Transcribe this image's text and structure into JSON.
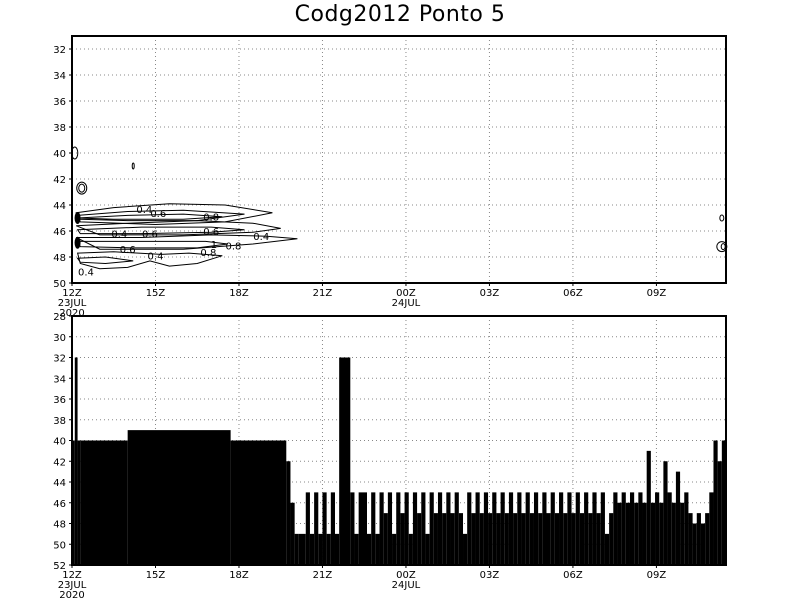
{
  "title": "Codg2012 Ponto 5",
  "chart_data": [
    {
      "type": "contour",
      "x_unit": "hours since 12Z 23JUL2020",
      "xlim": [
        0,
        23.5
      ],
      "x_ticks": [
        {
          "x": 0,
          "label": "12Z",
          "sub": "23JUL",
          "sub2": "2020"
        },
        {
          "x": 3,
          "label": "15Z"
        },
        {
          "x": 6,
          "label": "18Z"
        },
        {
          "x": 9,
          "label": "21Z"
        },
        {
          "x": 12,
          "label": "00Z",
          "sub": "24JUL"
        },
        {
          "x": 15,
          "label": "03Z"
        },
        {
          "x": 18,
          "label": "06Z"
        },
        {
          "x": 21,
          "label": "09Z"
        }
      ],
      "ylim": [
        31,
        50
      ],
      "y_inverted": true,
      "y_ticks": [
        32,
        34,
        36,
        38,
        40,
        42,
        44,
        46,
        48,
        50
      ],
      "grid": "dotted",
      "contour_labels": [
        {
          "text": "0.4",
          "x": 2.6,
          "y": 44.3
        },
        {
          "text": "0.6",
          "x": 3.1,
          "y": 44.6
        },
        {
          "text": "0.8",
          "x": 5.0,
          "y": 44.9
        },
        {
          "text": "0.6",
          "x": 5.0,
          "y": 46.0
        },
        {
          "text": "0.4",
          "x": 1.7,
          "y": 46.2
        },
        {
          "text": "0.6",
          "x": 2.8,
          "y": 46.2
        },
        {
          "text": "0.4",
          "x": 6.8,
          "y": 46.4
        },
        {
          "text": "1",
          "x": 5.1,
          "y": 47.0
        },
        {
          "text": "0.8",
          "x": 5.8,
          "y": 47.1
        },
        {
          "text": "0.6",
          "x": 2.0,
          "y": 47.4
        },
        {
          "text": "0.8",
          "x": 4.9,
          "y": 47.6
        },
        {
          "text": "0.4",
          "x": 3.0,
          "y": 47.9
        },
        {
          "text": "0.4",
          "x": 0.5,
          "y": 49.1
        }
      ]
    },
    {
      "type": "bar",
      "x_unit": "hours since 12Z 23JUL2020",
      "xlim": [
        0,
        23.5
      ],
      "x_ticks": [
        {
          "x": 0,
          "label": "12Z",
          "sub": "23JUL",
          "sub2": "2020"
        },
        {
          "x": 3,
          "label": "15Z"
        },
        {
          "x": 6,
          "label": "18Z"
        },
        {
          "x": 9,
          "label": "21Z"
        },
        {
          "x": 12,
          "label": "00Z",
          "sub": "24JUL"
        },
        {
          "x": 15,
          "label": "03Z"
        },
        {
          "x": 18,
          "label": "06Z"
        },
        {
          "x": 21,
          "label": "09Z"
        }
      ],
      "ylim": [
        28,
        52
      ],
      "y_inverted": true,
      "y_ticks": [
        28,
        30,
        32,
        34,
        36,
        38,
        40,
        42,
        44,
        46,
        48,
        50,
        52
      ],
      "baseline": 52,
      "grid": "dotted",
      "bars": [
        [
          0.0,
          0.1,
          40
        ],
        [
          0.1,
          0.2,
          32
        ],
        [
          0.2,
          0.3,
          40
        ],
        [
          0.3,
          2.0,
          40
        ],
        [
          2.0,
          5.7,
          39
        ],
        [
          5.7,
          7.7,
          40
        ],
        [
          7.7,
          7.85,
          42
        ],
        [
          7.85,
          8.0,
          46
        ],
        [
          8.0,
          8.15,
          49
        ],
        [
          8.15,
          8.4,
          49
        ],
        [
          8.4,
          8.55,
          45
        ],
        [
          8.55,
          8.7,
          49
        ],
        [
          8.7,
          8.85,
          45
        ],
        [
          8.85,
          9.0,
          49
        ],
        [
          9.0,
          9.15,
          45
        ],
        [
          9.15,
          9.3,
          49
        ],
        [
          9.3,
          9.45,
          45
        ],
        [
          9.45,
          9.6,
          49
        ],
        [
          9.6,
          10.0,
          32
        ],
        [
          10.0,
          10.15,
          45
        ],
        [
          10.15,
          10.3,
          49
        ],
        [
          10.3,
          10.6,
          45
        ],
        [
          10.6,
          10.75,
          49
        ],
        [
          10.75,
          10.9,
          45
        ],
        [
          10.9,
          11.05,
          49
        ],
        [
          11.05,
          11.2,
          45
        ],
        [
          11.2,
          11.35,
          47
        ],
        [
          11.35,
          11.5,
          45
        ],
        [
          11.5,
          11.65,
          49
        ],
        [
          11.65,
          11.8,
          45
        ],
        [
          11.8,
          11.95,
          47
        ],
        [
          11.95,
          12.1,
          45
        ],
        [
          12.1,
          12.25,
          49
        ],
        [
          12.25,
          12.4,
          45
        ],
        [
          12.4,
          12.55,
          47
        ],
        [
          12.55,
          12.7,
          45
        ],
        [
          12.7,
          12.85,
          49
        ],
        [
          12.85,
          13.0,
          45
        ],
        [
          13.0,
          13.15,
          47
        ],
        [
          13.15,
          13.3,
          45
        ],
        [
          13.3,
          13.45,
          47
        ],
        [
          13.45,
          13.6,
          45
        ],
        [
          13.6,
          13.75,
          47
        ],
        [
          13.75,
          13.9,
          45
        ],
        [
          13.9,
          14.05,
          47
        ],
        [
          14.05,
          14.2,
          49
        ],
        [
          14.2,
          14.35,
          45
        ],
        [
          14.35,
          14.5,
          47
        ],
        [
          14.5,
          14.65,
          45
        ],
        [
          14.65,
          14.8,
          47
        ],
        [
          14.8,
          14.95,
          45
        ],
        [
          14.95,
          15.1,
          47
        ],
        [
          15.1,
          15.25,
          45
        ],
        [
          15.25,
          15.4,
          47
        ],
        [
          15.4,
          15.55,
          45
        ],
        [
          15.55,
          15.7,
          47
        ],
        [
          15.7,
          15.85,
          45
        ],
        [
          15.85,
          16.0,
          47
        ],
        [
          16.0,
          16.15,
          45
        ],
        [
          16.15,
          16.3,
          47
        ],
        [
          16.3,
          16.45,
          45
        ],
        [
          16.45,
          16.6,
          47
        ],
        [
          16.6,
          16.75,
          45
        ],
        [
          16.75,
          16.9,
          47
        ],
        [
          16.9,
          17.05,
          45
        ],
        [
          17.05,
          17.2,
          47
        ],
        [
          17.2,
          17.35,
          45
        ],
        [
          17.35,
          17.5,
          47
        ],
        [
          17.5,
          17.65,
          45
        ],
        [
          17.65,
          17.8,
          47
        ],
        [
          17.8,
          17.95,
          45
        ],
        [
          17.95,
          18.1,
          47
        ],
        [
          18.1,
          18.25,
          45
        ],
        [
          18.25,
          18.4,
          47
        ],
        [
          18.4,
          18.55,
          45
        ],
        [
          18.55,
          18.7,
          47
        ],
        [
          18.7,
          18.85,
          45
        ],
        [
          18.85,
          19.0,
          47
        ],
        [
          19.0,
          19.15,
          45
        ],
        [
          19.15,
          19.3,
          49
        ],
        [
          19.3,
          19.45,
          47
        ],
        [
          19.45,
          19.6,
          45
        ],
        [
          19.6,
          19.75,
          46
        ],
        [
          19.75,
          19.9,
          45
        ],
        [
          19.9,
          20.05,
          46
        ],
        [
          20.05,
          20.2,
          45
        ],
        [
          20.2,
          20.35,
          46
        ],
        [
          20.35,
          20.5,
          45
        ],
        [
          20.5,
          20.65,
          46
        ],
        [
          20.65,
          20.8,
          41
        ],
        [
          20.8,
          20.95,
          46
        ],
        [
          20.95,
          21.1,
          45
        ],
        [
          21.1,
          21.25,
          46
        ],
        [
          21.25,
          21.4,
          42
        ],
        [
          21.4,
          21.55,
          45
        ],
        [
          21.55,
          21.7,
          46
        ],
        [
          21.7,
          21.85,
          43
        ],
        [
          21.85,
          22.0,
          46
        ],
        [
          22.0,
          22.15,
          45
        ],
        [
          22.15,
          22.3,
          47
        ],
        [
          22.3,
          22.45,
          48
        ],
        [
          22.45,
          22.6,
          47
        ],
        [
          22.6,
          22.75,
          48
        ],
        [
          22.75,
          22.9,
          47
        ],
        [
          22.9,
          23.05,
          45
        ],
        [
          23.05,
          23.2,
          40
        ],
        [
          23.2,
          23.35,
          42
        ],
        [
          23.35,
          23.5,
          40
        ]
      ]
    }
  ]
}
